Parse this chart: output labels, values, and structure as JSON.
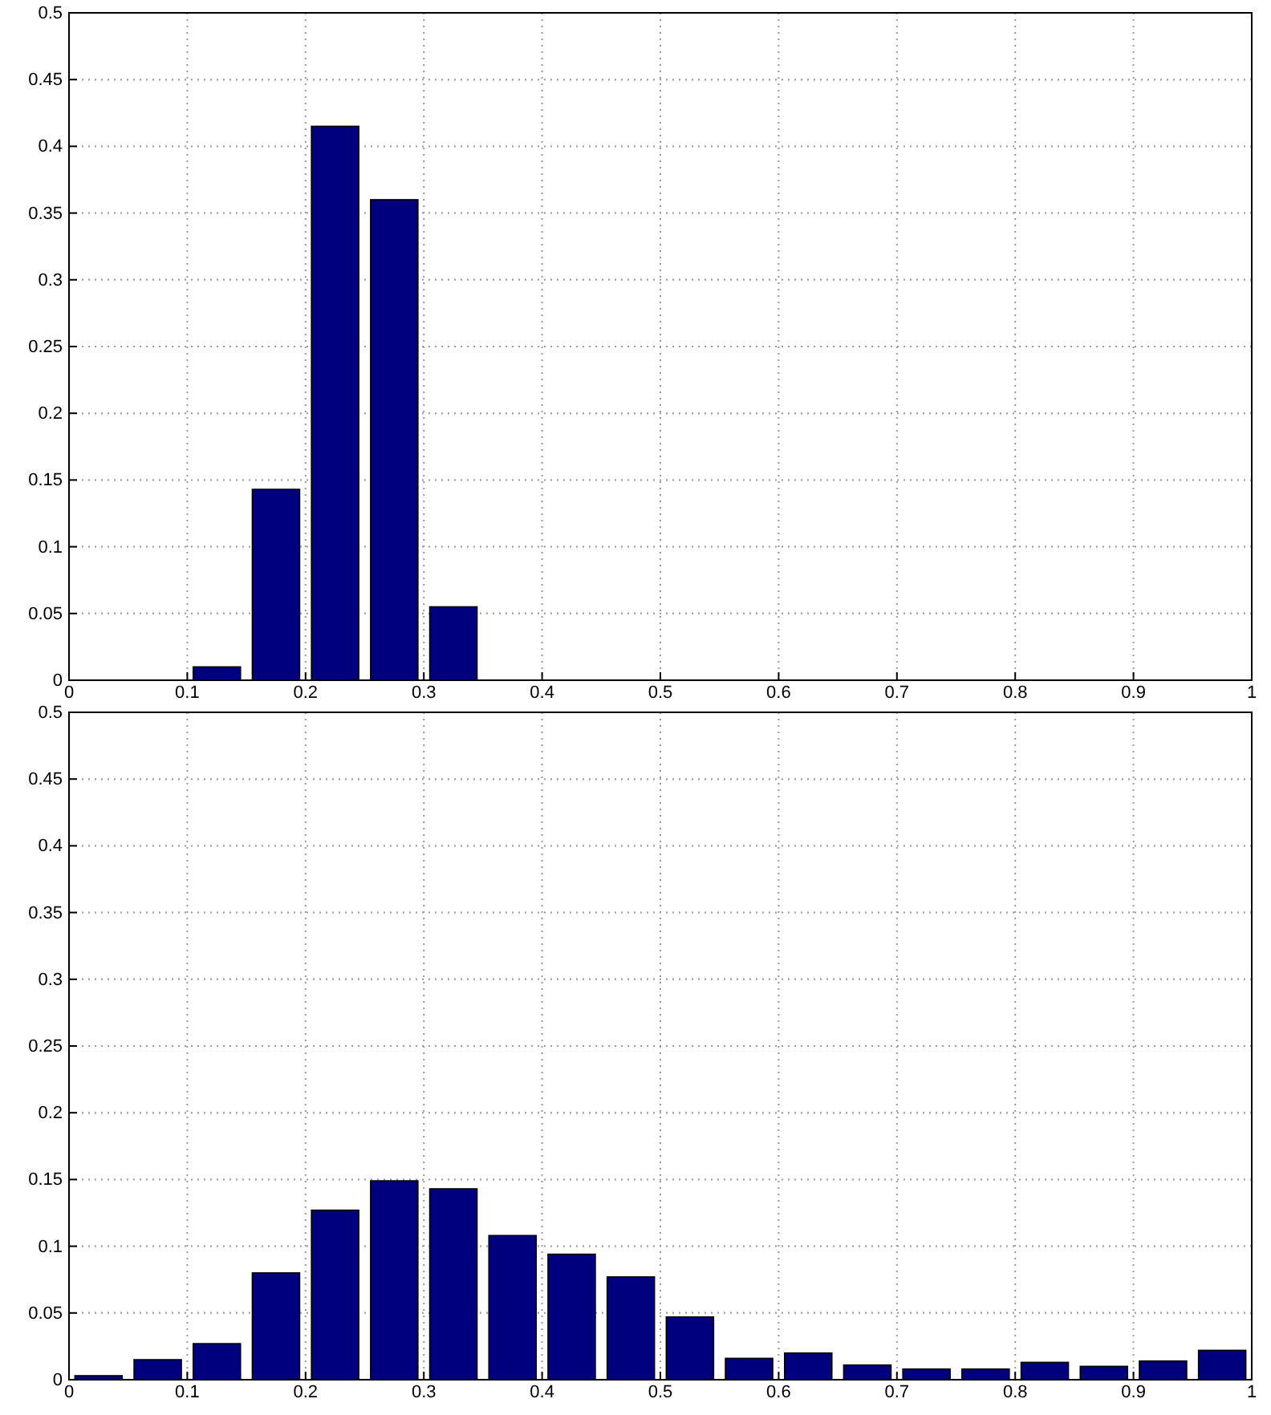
{
  "chart_data": [
    {
      "type": "histogram",
      "bins": [
        0,
        0.05,
        0.1,
        0.15,
        0.2,
        0.25,
        0.3,
        0.35,
        0.4,
        0.45,
        0.5,
        0.55,
        0.6,
        0.65,
        0.7,
        0.75,
        0.8,
        0.85,
        0.9,
        0.95,
        1
      ],
      "values": [
        0,
        0,
        0.01,
        0.143,
        0.415,
        0.36,
        0.055,
        0,
        0,
        0,
        0,
        0,
        0,
        0,
        0,
        0,
        0,
        0,
        0,
        0
      ],
      "color": "#00007f",
      "xlim": [
        0,
        1
      ],
      "ylim": [
        0,
        0.5
      ],
      "xticks": [
        0,
        0.1,
        0.2,
        0.3,
        0.4,
        0.5,
        0.6,
        0.7,
        0.8,
        0.9,
        1
      ],
      "yticks": [
        0,
        0.05,
        0.1,
        0.15,
        0.2,
        0.25,
        0.3,
        0.35,
        0.4,
        0.45,
        0.5
      ],
      "grid": true
    },
    {
      "type": "histogram",
      "bins": [
        0,
        0.05,
        0.1,
        0.15,
        0.2,
        0.25,
        0.3,
        0.35,
        0.4,
        0.45,
        0.5,
        0.55,
        0.6,
        0.65,
        0.7,
        0.75,
        0.8,
        0.85,
        0.9,
        0.95,
        1
      ],
      "values": [
        0.003,
        0.015,
        0.027,
        0.08,
        0.127,
        0.149,
        0.143,
        0.108,
        0.094,
        0.077,
        0.047,
        0.016,
        0.02,
        0.011,
        0.008,
        0.008,
        0.013,
        0.01,
        0.014,
        0.022
      ],
      "color": "#00007f",
      "xlim": [
        0,
        1
      ],
      "ylim": [
        0,
        0.5
      ],
      "xticks": [
        0,
        0.1,
        0.2,
        0.3,
        0.4,
        0.5,
        0.6,
        0.7,
        0.8,
        0.9,
        1
      ],
      "yticks": [
        0,
        0.05,
        0.1,
        0.15,
        0.2,
        0.25,
        0.3,
        0.35,
        0.4,
        0.45,
        0.5
      ],
      "grid": true
    }
  ]
}
